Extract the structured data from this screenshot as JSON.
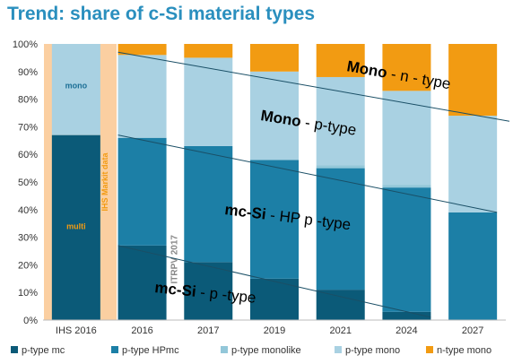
{
  "chart_data": {
    "type": "bar",
    "stacked": true,
    "title": "Trend: share of c-Si material types",
    "categories": [
      "IHS 2016",
      "2016",
      "2017",
      "2019",
      "2021",
      "2024",
      "2027"
    ],
    "ylim": [
      0,
      100
    ],
    "yticks": [
      "0%",
      "10%",
      "20%",
      "30%",
      "40%",
      "50%",
      "60%",
      "70%",
      "80%",
      "90%",
      "100%"
    ],
    "grid": false,
    "legend_position": "bottom",
    "series": [
      {
        "name": "p-type mc",
        "color": "#0b5a78",
        "values": [
          67,
          27,
          21,
          15,
          11,
          3,
          0
        ]
      },
      {
        "name": "p-type HPmc",
        "color": "#1c7fa6",
        "values": [
          0,
          39,
          42,
          43,
          44,
          45,
          39
        ]
      },
      {
        "name": "p-type monolike",
        "color": "#93c7d9",
        "values": [
          0,
          0,
          0,
          0,
          1,
          1,
          0
        ]
      },
      {
        "name": "p-type mono",
        "color": "#a9d1e2",
        "values": [
          33,
          30,
          32,
          32,
          32,
          34,
          35
        ]
      },
      {
        "name": "n-type mono",
        "color": "#f29b12",
        "values": [
          0,
          4,
          5,
          10,
          12,
          17,
          26
        ]
      }
    ],
    "ihs_bar_labels": {
      "mono": "mono",
      "multi": "multi"
    },
    "ihs_source_label": "IHS Markit  data",
    "itrpv_label": "ITRPV 2017",
    "annotations": [
      {
        "bold": "Mono",
        "rest": " - n - type"
      },
      {
        "bold": "Mono",
        "rest": " - p-type"
      },
      {
        "bold": "mc-Si",
        "rest": " - HP p -type"
      },
      {
        "bold": "mc-Si",
        "rest": " - p -type"
      }
    ],
    "ihs_band_color": "#fbcfa1"
  }
}
